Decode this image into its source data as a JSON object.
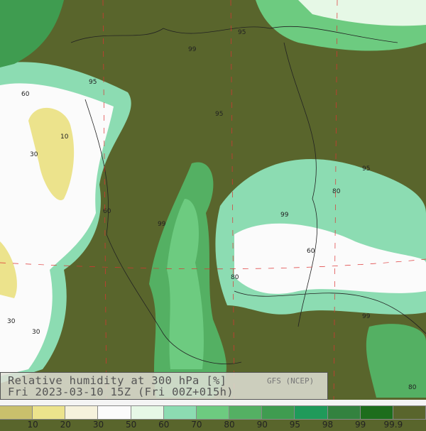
{
  "title": {
    "line1": "Relative humidity at 300 hPa [%]",
    "line2": "Fri 2023-03-10 15Z (Fri 00Z+015h)",
    "source": "GFS (NCEP)"
  },
  "legend": {
    "colors": [
      "#c9c06c",
      "#ece38c",
      "#f6f2dc",
      "#fbfbfb",
      "#e6f8e6",
      "#8cdcb2",
      "#6dcb80",
      "#54b063",
      "#3f9c50",
      "#1f9a5a",
      "#33823f",
      "#1d6d1c",
      "#59652c"
    ],
    "labels": [
      "10",
      "20",
      "30",
      "50",
      "60",
      "70",
      "80",
      "90",
      "95",
      "98",
      "99",
      "99.9"
    ]
  },
  "contour_labels": [
    "10",
    "30",
    "30",
    "30",
    "60",
    "60",
    "60",
    "80",
    "80",
    "80",
    "95",
    "95",
    "95",
    "95",
    "99",
    "99",
    "99",
    "99"
  ]
}
